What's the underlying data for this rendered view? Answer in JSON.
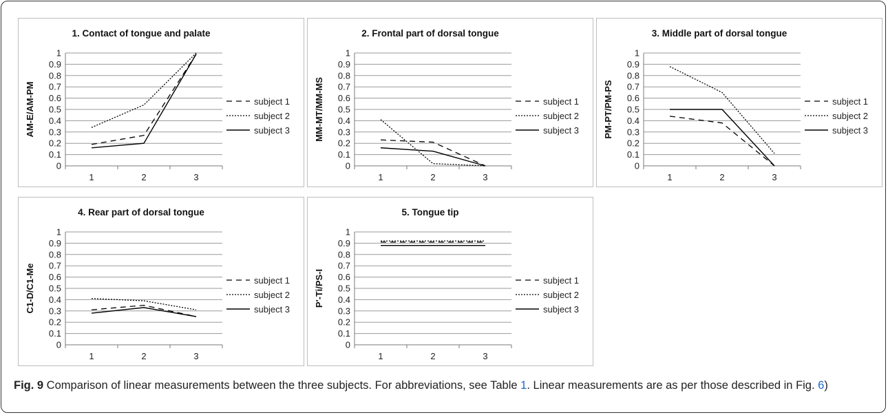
{
  "chart_data": [
    {
      "type": "line",
      "title": "1. Contact of tongue and palate",
      "ylabel": "AM-E/AM-PM",
      "categories": [
        "1",
        "2",
        "3"
      ],
      "ylim": [
        0,
        1
      ],
      "yticks": [
        "0",
        "0.1",
        "0.2",
        "0.3",
        "0.4",
        "0.5",
        "0.6",
        "0.7",
        "0.8",
        "0.9",
        "1"
      ],
      "grid": true,
      "legend": "right",
      "series": [
        {
          "name": "subject 1",
          "values": [
            0.19,
            0.27,
            0.99
          ]
        },
        {
          "name": "subject 2",
          "values": [
            0.34,
            0.54,
            1.0
          ]
        },
        {
          "name": "subject 3",
          "values": [
            0.16,
            0.2,
            0.99
          ]
        }
      ]
    },
    {
      "type": "line",
      "title": "2. Frontal part of dorsal tongue",
      "ylabel": "MM-MT/MM-MS",
      "categories": [
        "1",
        "2",
        "3"
      ],
      "ylim": [
        0,
        1
      ],
      "yticks": [
        "0",
        "0.1",
        "0.2",
        "0.3",
        "0.4",
        "0.5",
        "0.6",
        "0.7",
        "0.8",
        "0.9",
        "1"
      ],
      "grid": true,
      "legend": "right",
      "series": [
        {
          "name": "subject 1",
          "values": [
            0.23,
            0.21,
            0.0
          ]
        },
        {
          "name": "subject 2",
          "values": [
            0.41,
            0.02,
            0.0
          ]
        },
        {
          "name": "subject 3",
          "values": [
            0.16,
            0.13,
            0.0
          ]
        }
      ]
    },
    {
      "type": "line",
      "title": "3. Middle part of dorsal tongue",
      "ylabel": "PM-PT/PM-PS",
      "categories": [
        "1",
        "2",
        "3"
      ],
      "ylim": [
        0,
        1
      ],
      "yticks": [
        "0",
        "0.1",
        "0.2",
        "0.3",
        "0.4",
        "0.5",
        "0.6",
        "0.7",
        "0.8",
        "0.9",
        "1"
      ],
      "grid": true,
      "legend": "right",
      "series": [
        {
          "name": "subject 1",
          "values": [
            0.44,
            0.38,
            0.0
          ]
        },
        {
          "name": "subject 2",
          "values": [
            0.88,
            0.65,
            0.11
          ]
        },
        {
          "name": "subject 3",
          "values": [
            0.5,
            0.5,
            0.0
          ]
        }
      ]
    },
    {
      "type": "line",
      "title": "4. Rear part of dorsal tongue",
      "ylabel": "C1-D/C1-Me",
      "categories": [
        "1",
        "2",
        "3"
      ],
      "ylim": [
        0,
        1
      ],
      "yticks": [
        "0",
        "0.1",
        "0.2",
        "0.3",
        "0.4",
        "0.5",
        "0.6",
        "0.7",
        "0.8",
        "0.9",
        "1"
      ],
      "grid": true,
      "legend": "right",
      "series": [
        {
          "name": "subject 1",
          "values": [
            0.31,
            0.35,
            0.25
          ]
        },
        {
          "name": "subject 2",
          "values": [
            0.41,
            0.39,
            0.31
          ]
        },
        {
          "name": "subject 3",
          "values": [
            0.28,
            0.33,
            0.25
          ]
        }
      ]
    },
    {
      "type": "line",
      "title": "5. Tongue tip",
      "ylabel": "P'-Ti/PS-I",
      "categories": [
        "1",
        "2",
        "3"
      ],
      "ylim": [
        0,
        1
      ],
      "yticks": [
        "0",
        "0.1",
        "0.2",
        "0.3",
        "0.4",
        "0.5",
        "0.6",
        "0.7",
        "0.8",
        "0.9",
        "1"
      ],
      "grid": true,
      "legend": "right",
      "series": [
        {
          "name": "subject 1",
          "values": [
            0.91,
            0.91,
            0.91
          ]
        },
        {
          "name": "subject 2",
          "values": [
            0.92,
            0.92,
            0.92
          ]
        },
        {
          "name": "subject 3",
          "values": [
            0.88,
            0.88,
            0.88
          ]
        }
      ]
    }
  ],
  "caption": {
    "fig_label": "Fig. 9",
    "text_1": " Comparison of linear measurements between the three subjects. For abbreviations, see Table ",
    "ref_table": "1",
    "text_2": ". Linear measurements are as per those described in Fig. ",
    "ref_fig": "6",
    "text_3": ")"
  }
}
